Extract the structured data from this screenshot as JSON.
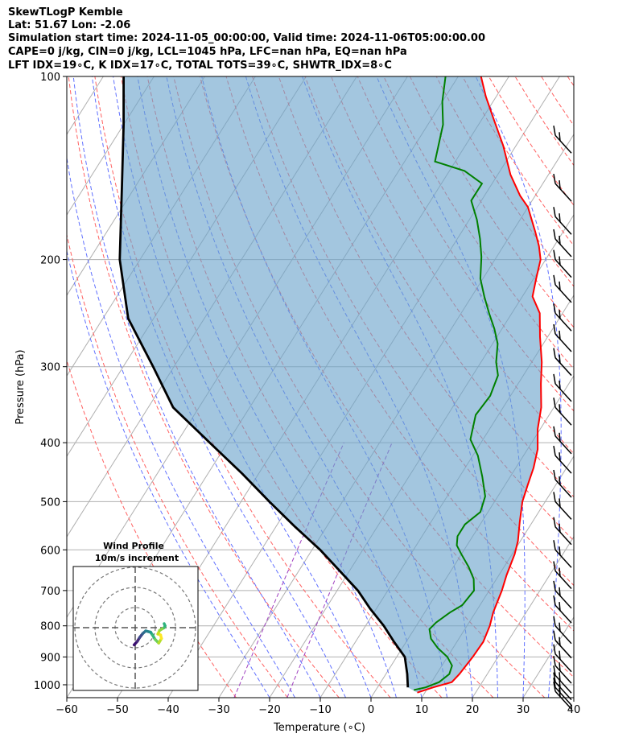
{
  "header": {
    "line1": "SkewTLogP Kemble",
    "line2": "Lat: 51.67   Lon: -2.06",
    "line3": "Simulation start time: 2024-11-05_00:00:00, Valid time: 2024-11-06T05:00:00.00",
    "line4": "CAPE=0 j/kg, CIN=0 j/kg, LCL=1045 hPa, LFC=nan hPa, EQ=nan hPa",
    "line5": "LFT IDX=19∘C, K IDX=17∘C, TOTAL TOTS=39∘C, SHWTR_IDX=8∘C"
  },
  "chart_data": {
    "type": "skew-t log-p",
    "xlabel": "Temperature (∘C)",
    "ylabel": "Pressure (hPa)",
    "xlim": [
      -60,
      40
    ],
    "ylim": [
      1050,
      100
    ],
    "x_ticks": [
      -60,
      -50,
      -40,
      -30,
      -20,
      -10,
      0,
      10,
      20,
      30,
      40
    ],
    "x_tick_labels": [
      "−60",
      "−50",
      "−40",
      "−30",
      "−20",
      "−10",
      "0",
      "10",
      "20",
      "30",
      "40"
    ],
    "y_ticks": [
      100,
      200,
      300,
      400,
      500,
      600,
      700,
      800,
      900,
      1000
    ],
    "y_tick_labels": [
      "100",
      "200",
      "300",
      "400",
      "500",
      "600",
      "700",
      "800",
      "900",
      "1000"
    ],
    "series": [
      {
        "name": "Temperature",
        "color": "#ff0000",
        "points": [
          [
            8.5,
            1030
          ],
          [
            11,
            1010
          ],
          [
            14,
            990
          ],
          [
            14.5,
            960
          ],
          [
            15,
            900
          ],
          [
            15.2,
            850
          ],
          [
            14.5,
            800
          ],
          [
            13.5,
            760
          ],
          [
            12.5,
            700
          ],
          [
            11.5,
            660
          ],
          [
            10.5,
            610
          ],
          [
            9.5,
            580
          ],
          [
            7.5,
            540
          ],
          [
            5.5,
            500
          ],
          [
            4.5,
            470
          ],
          [
            3.5,
            440
          ],
          [
            2,
            410
          ],
          [
            -0.5,
            380
          ],
          [
            -2.5,
            350
          ],
          [
            -5.5,
            320
          ],
          [
            -8,
            295
          ],
          [
            -11.5,
            268
          ],
          [
            -14.5,
            245
          ],
          [
            -18,
            230
          ],
          [
            -19.5,
            215
          ],
          [
            -21,
            200
          ],
          [
            -23,
            190
          ],
          [
            -25.5,
            180
          ],
          [
            -30,
            164
          ],
          [
            -33,
            157
          ],
          [
            -37.5,
            145
          ],
          [
            -42.5,
            130
          ],
          [
            -47.5,
            118
          ],
          [
            -52,
            108
          ],
          [
            -55.5,
            100
          ]
        ]
      },
      {
        "name": "Dewpoint",
        "color": "#008000",
        "points": [
          [
            7.5,
            1020
          ],
          [
            9.5,
            1010
          ],
          [
            11.5,
            990
          ],
          [
            12.5,
            960
          ],
          [
            12,
            930
          ],
          [
            10,
            900
          ],
          [
            7,
            870
          ],
          [
            4.5,
            840
          ],
          [
            3,
            810
          ],
          [
            3.5,
            790
          ],
          [
            5,
            760
          ],
          [
            6.5,
            740
          ],
          [
            7,
            700
          ],
          [
            5.5,
            670
          ],
          [
            3,
            640
          ],
          [
            0,
            610
          ],
          [
            -2,
            590
          ],
          [
            -3,
            570
          ],
          [
            -3,
            545
          ],
          [
            -1.5,
            520
          ],
          [
            -2.5,
            490
          ],
          [
            -5.5,
            455
          ],
          [
            -9,
            420
          ],
          [
            -12.5,
            395
          ],
          [
            -14.5,
            360
          ],
          [
            -14,
            335
          ],
          [
            -15,
            310
          ],
          [
            -17,
            295
          ],
          [
            -19,
            275
          ],
          [
            -21.5,
            260
          ],
          [
            -24.5,
            245
          ],
          [
            -27.5,
            230
          ],
          [
            -30.5,
            215
          ],
          [
            -33,
            198
          ],
          [
            -35.5,
            185
          ],
          [
            -38.5,
            172
          ],
          [
            -42,
            160
          ],
          [
            -42,
            150
          ],
          [
            -47,
            143
          ],
          [
            -54,
            138
          ],
          [
            -57,
            120
          ],
          [
            -60,
            110
          ],
          [
            -62.5,
            100
          ]
        ]
      },
      {
        "name": "Parcel",
        "color": "#000000",
        "points": [
          [
            6,
            1010
          ],
          [
            4.2,
            960
          ],
          [
            1.6,
            900
          ],
          [
            -2.4,
            850
          ],
          [
            -6.4,
            800
          ],
          [
            -11.2,
            750
          ],
          [
            -15.9,
            700
          ],
          [
            -21.9,
            650
          ],
          [
            -28.4,
            600
          ],
          [
            -36.2,
            550
          ],
          [
            -44.4,
            500
          ],
          [
            -53.2,
            450
          ],
          [
            -63.5,
            400
          ],
          [
            -75.1,
            350
          ],
          [
            -84.1,
            300
          ],
          [
            -95,
            250
          ],
          [
            -104,
            200
          ],
          [
            -113,
            150
          ],
          [
            -120,
            120
          ],
          [
            -126,
            100
          ]
        ]
      }
    ],
    "wind_profile": {
      "title": "Wind Profile",
      "subtitle": "10m/s increment",
      "ring_increment_ms": 10,
      "hodograph_uv": [
        [
          -0.6,
          9.5
        ],
        [
          1.2,
          7.5
        ],
        [
          3.6,
          5.6
        ],
        [
          4.6,
          4.2
        ],
        [
          4.2,
          3
        ],
        [
          4.6,
          1.8
        ],
        [
          3.3,
          1.2
        ],
        [
          2.3,
          0.4
        ],
        [
          1.8,
          -0.4
        ],
        [
          1,
          -0.8
        ],
        [
          0.3,
          -0.8
        ],
        [
          -0.3,
          -0.3
        ],
        [
          -0.3,
          0.5
        ],
        [
          0.1,
          1.2
        ],
        [
          -0.1,
          2.1
        ],
        [
          0.1,
          2.5
        ]
      ]
    },
    "wind_barb_levels_hpa": [
      125,
      150,
      170,
      185,
      200,
      220,
      245,
      265,
      290,
      320,
      350,
      390,
      420,
      460,
      500,
      550,
      600,
      650,
      700,
      740,
      800,
      845,
      890,
      930,
      965,
      990,
      1010,
      1025
    ]
  }
}
